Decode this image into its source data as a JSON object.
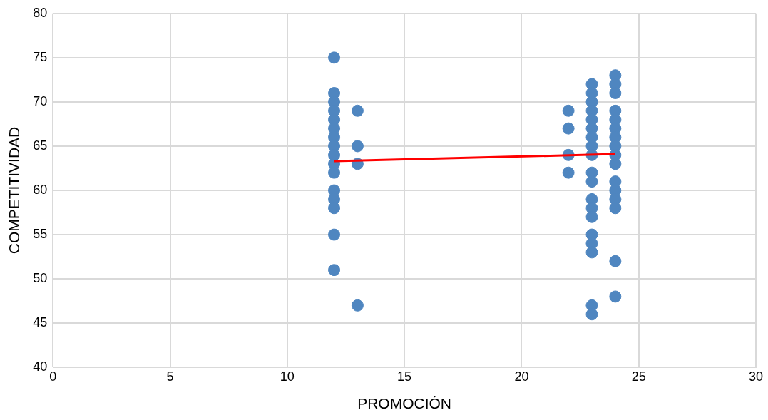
{
  "chart_data": {
    "type": "scatter",
    "xlabel": "PROMOCIÓN",
    "ylabel": "COMPETITIVIDAD",
    "xlim": [
      0,
      30
    ],
    "xticks": [
      0,
      5,
      10,
      15,
      20,
      25,
      30
    ],
    "ylim": [
      40,
      80
    ],
    "yticks": [
      40,
      45,
      50,
      55,
      60,
      65,
      70,
      75,
      80
    ],
    "grid": true,
    "legend": false,
    "series": [
      {
        "marker": "circle",
        "color": "#4f86c0",
        "x": [
          12,
          12,
          12,
          12,
          12,
          12,
          12,
          12,
          12,
          12,
          12,
          12,
          12,
          12,
          12,
          12,
          13,
          13,
          13,
          13,
          22,
          22,
          22,
          22,
          23,
          23,
          23,
          23,
          23,
          23,
          23,
          23,
          23,
          23,
          23,
          23,
          23,
          23,
          23,
          23,
          23,
          23,
          23,
          24,
          24,
          24,
          24,
          24,
          24,
          24,
          24,
          24,
          24,
          24,
          24,
          24,
          24,
          24,
          24
        ],
        "values": [
          75,
          71,
          70,
          69,
          68,
          67,
          66,
          65,
          64,
          63,
          62,
          60,
          59,
          58,
          55,
          51,
          69,
          65,
          63,
          47,
          69,
          67,
          64,
          62,
          72,
          71,
          70,
          69,
          68,
          67,
          66,
          65,
          64,
          62,
          61,
          59,
          58,
          57,
          55,
          54,
          53,
          47,
          46,
          73,
          72,
          71,
          69,
          68,
          67,
          66,
          65,
          64,
          63,
          61,
          60,
          59,
          58,
          52,
          48
        ]
      },
      {
        "type": "line",
        "marker": "none",
        "color": "#ff0000",
        "x": [
          12,
          24
        ],
        "values": [
          63.3,
          64.1
        ]
      }
    ]
  }
}
